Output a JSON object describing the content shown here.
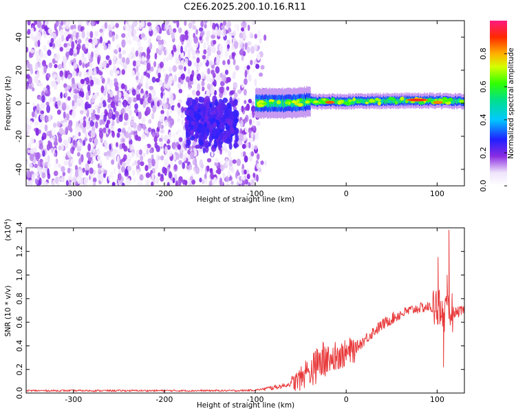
{
  "title": "C2E6.2025.200.10.16.R11",
  "chart_data": [
    {
      "type": "heatmap",
      "xlabel": "Height of straight line (km)",
      "ylabel": "Frequency (Hz)",
      "xlim": [
        -352,
        130
      ],
      "ylim": [
        -50,
        50
      ],
      "x_ticks": [
        -300,
        -200,
        -100,
        0,
        100
      ],
      "y_ticks": [
        -40,
        -20,
        0,
        20,
        40
      ],
      "colorbar": {
        "label": "Normalized spectral amplitude",
        "range": [
          0,
          1
        ],
        "ticks": [
          0.0,
          0.2,
          0.4,
          0.6,
          0.8
        ]
      },
      "regions": [
        {
          "x_range": [
            -352,
            -88
          ],
          "freq_range": [
            -50,
            50
          ],
          "amplitude": "0.05-0.25 (broadband noise)"
        },
        {
          "x_range": [
            -175,
            -120
          ],
          "freq_range": [
            -12,
            12
          ],
          "amplitude": "0.2-0.3"
        },
        {
          "x_range": [
            -100,
            130
          ],
          "freq_range": [
            -5,
            5
          ],
          "amplitude": "0.3-1.0 (narrow band near 0-2 Hz)"
        }
      ],
      "band_center_hz": [
        {
          "x": -95,
          "f": 0
        },
        {
          "x": -60,
          "f": 0
        },
        {
          "x": -40,
          "f": 1
        },
        {
          "x": 0,
          "f": 1
        },
        {
          "x": 50,
          "f": 1.5
        },
        {
          "x": 100,
          "f": 1.5
        },
        {
          "x": 130,
          "f": 1
        }
      ],
      "peaks": [
        {
          "x": -18,
          "f": 0.6,
          "amplitude": 0.95
        },
        {
          "x": 78,
          "f": 2,
          "amplitude": 1.0
        },
        {
          "x": 101,
          "f": 0.5,
          "amplitude": 0.9
        }
      ]
    },
    {
      "type": "line",
      "xlabel": "Height of straight line (km)",
      "ylabel": "SNR (10 * v/v)",
      "y_multiplier": "(x10",
      "y_multiplier_exp": "4",
      "xlim": [
        -352,
        130
      ],
      "ylim": [
        0,
        1.4
      ],
      "x_ticks": [
        -300,
        -200,
        -100,
        0,
        100
      ],
      "y_ticks": [
        0.0,
        0.2,
        0.4,
        0.6,
        0.8,
        1.0,
        1.2,
        1.4
      ],
      "color": "#e8383a",
      "series": [
        {
          "x": [
            -352,
            -300,
            -250,
            -200,
            -150,
            -120,
            -100,
            -85,
            -70,
            -60,
            -50,
            -40,
            -30,
            -20,
            -10,
            0,
            10,
            20,
            30,
            40,
            50,
            60,
            70,
            80,
            90,
            95,
            100,
            105,
            110,
            115,
            120,
            130
          ],
          "y": [
            0.02,
            0.02,
            0.02,
            0.02,
            0.02,
            0.02,
            0.025,
            0.04,
            0.06,
            0.08,
            0.12,
            0.18,
            0.25,
            0.3,
            0.32,
            0.33,
            0.38,
            0.45,
            0.52,
            0.58,
            0.63,
            0.67,
            0.7,
            0.72,
            0.73,
            0.72,
            0.75,
            0.7,
            0.65,
            0.7,
            0.68,
            0.7
          ]
        }
      ],
      "spikes": [
        {
          "x": 101,
          "y": 1.15
        },
        {
          "x": 107,
          "y": 0.22
        },
        {
          "x": 111,
          "y": 1.0
        },
        {
          "x": 113,
          "y": 1.38
        },
        {
          "x": 116,
          "y": 0.65
        }
      ]
    }
  ]
}
